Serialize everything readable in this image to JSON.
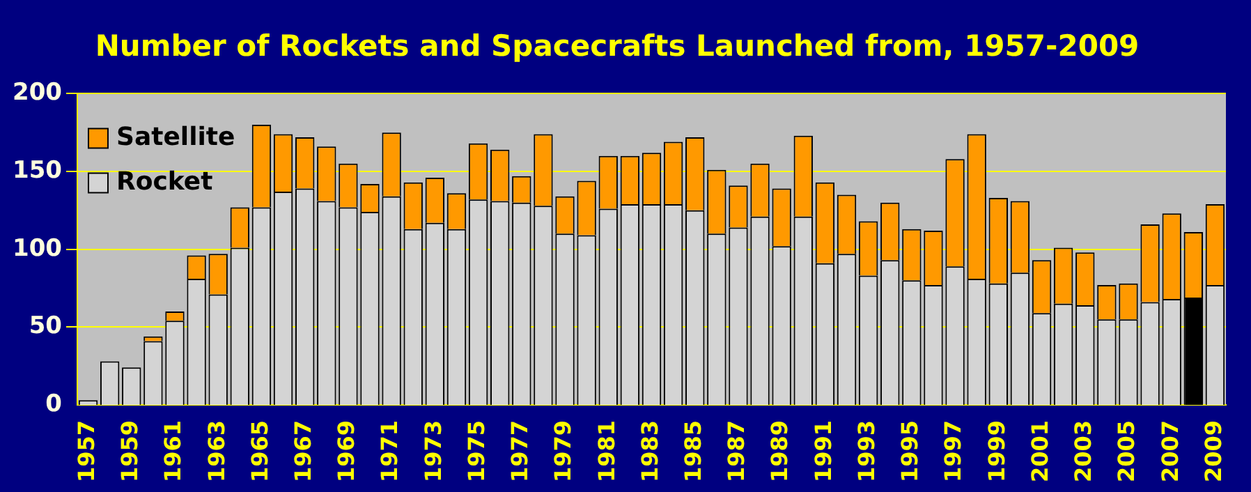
{
  "chart_data": {
    "type": "bar",
    "title": "Number of Rockets and Spacecrafts Launched from, 1957-2009",
    "stacked": true,
    "categories": [
      "1957",
      null,
      "1959",
      null,
      "1961",
      null,
      "1963",
      null,
      "1965",
      null,
      "1967",
      null,
      "1969",
      null,
      "1971",
      null,
      "1973",
      null,
      "1975",
      null,
      "1977",
      null,
      "1979",
      null,
      "1981",
      null,
      "1983",
      null,
      "1985",
      null,
      "1987",
      null,
      "1989",
      null,
      "1991",
      null,
      "1993",
      null,
      "1995",
      null,
      "1997",
      null,
      "1999",
      null,
      "2001",
      null,
      "2003",
      null,
      "2005",
      null,
      "2007",
      null,
      "2009"
    ],
    "series": [
      {
        "name": "Rocket",
        "color": "#d4d4d4",
        "colors": [
          "#d4d4d4",
          "#d4d4d4",
          "#d4d4d4",
          "#d4d4d4",
          "#d4d4d4",
          "#d4d4d4",
          "#d4d4d4",
          "#d4d4d4",
          "#d4d4d4",
          "#d4d4d4",
          "#d4d4d4",
          "#d4d4d4",
          "#d4d4d4",
          "#d4d4d4",
          "#d4d4d4",
          "#d4d4d4",
          "#d4d4d4",
          "#d4d4d4",
          "#d4d4d4",
          "#d4d4d4",
          "#d4d4d4",
          "#d4d4d4",
          "#d4d4d4",
          "#d4d4d4",
          "#d4d4d4",
          "#d4d4d4",
          "#d4d4d4",
          "#d4d4d4",
          "#d4d4d4",
          "#d4d4d4",
          "#d4d4d4",
          "#d4d4d4",
          "#d4d4d4",
          "#d4d4d4",
          "#d4d4d4",
          "#d4d4d4",
          "#d4d4d4",
          "#d4d4d4",
          "#d4d4d4",
          "#d4d4d4",
          "#d4d4d4",
          "#d4d4d4",
          "#d4d4d4",
          "#d4d4d4",
          "#d4d4d4",
          "#d4d4d4",
          "#d4d4d4",
          "#d4d4d4",
          "#d4d4d4",
          "#d4d4d4",
          "#d4d4d4",
          "#000000",
          "#d4d4d4"
        ],
        "values": [
          3,
          28,
          24,
          41,
          54,
          81,
          71,
          101,
          127,
          137,
          139,
          131,
          127,
          124,
          134,
          113,
          117,
          113,
          132,
          131,
          130,
          128,
          110,
          109,
          126,
          129,
          129,
          129,
          125,
          110,
          114,
          121,
          102,
          121,
          91,
          97,
          83,
          93,
          80,
          77,
          89,
          81,
          78,
          85,
          59,
          65,
          64,
          55,
          55,
          66,
          68,
          69,
          77
        ]
      },
      {
        "name": "Satellite",
        "color": "#ff9900",
        "values": [
          0,
          0,
          0,
          3,
          6,
          15,
          26,
          26,
          53,
          37,
          33,
          35,
          28,
          18,
          41,
          30,
          29,
          23,
          36,
          33,
          17,
          46,
          24,
          35,
          34,
          31,
          33,
          40,
          47,
          41,
          27,
          34,
          37,
          52,
          52,
          38,
          35,
          37,
          33,
          35,
          69,
          93,
          55,
          46,
          34,
          36,
          34,
          22,
          23,
          50,
          55,
          42,
          52
        ]
      }
    ],
    "ylim": [
      0,
      200
    ],
    "yticks": [
      0,
      50,
      100,
      150,
      200
    ],
    "grid": "y",
    "legend": "top left"
  }
}
